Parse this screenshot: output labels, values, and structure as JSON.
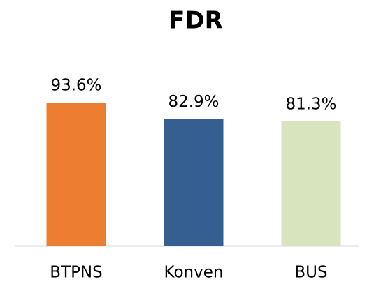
{
  "chart_data": {
    "type": "bar",
    "title": "FDR",
    "categories": [
      "BTPNS",
      "Konven",
      "BUS"
    ],
    "values": [
      93.6,
      82.9,
      81.3
    ],
    "value_labels": [
      "93.6%",
      "82.9%",
      "81.3%"
    ],
    "colors": [
      "#ed7d31",
      "#355e91",
      "#d7e4bd"
    ]
  }
}
